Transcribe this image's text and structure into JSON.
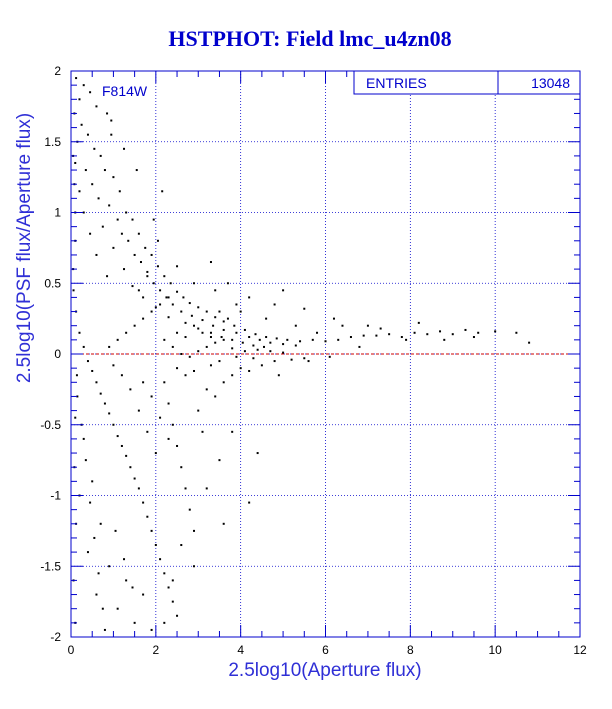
{
  "chart_data": {
    "type": "scatter",
    "title": "HSTPHOT: Field lmc_u4zn08",
    "xlabel": "2.5log10(Aperture flux)",
    "ylabel": "2.5log10(PSF flux/Aperture flux)",
    "xlim": [
      0,
      12
    ],
    "ylim": [
      -2,
      2
    ],
    "x_ticks": [
      0,
      2,
      4,
      6,
      8,
      10,
      12
    ],
    "y_ticks": [
      -2,
      -1.5,
      -1,
      -0.5,
      0,
      0.5,
      1,
      1.5,
      2
    ],
    "x_tick_labels": [
      "0",
      "2",
      "4",
      "6",
      "8",
      "10",
      "12"
    ],
    "y_tick_labels": [
      "-2",
      "-1.5",
      "-1",
      "-0.5",
      "0",
      "0.5",
      "1",
      "1.5",
      "2"
    ],
    "grid": true,
    "annotation": "F814W",
    "stats_box": {
      "label": "ENTRIES",
      "value": "13048",
      "placement": "top-right"
    },
    "reference_line": {
      "y": 0,
      "color": "#cc0000"
    },
    "point_color": "#000000",
    "axis_color": "#0000cc",
    "series": [
      {
        "points": [
          [
            0.12,
            1.95
          ],
          [
            0.3,
            1.9
          ],
          [
            0.45,
            1.85
          ],
          [
            0.2,
            1.8
          ],
          [
            0.6,
            1.75
          ],
          [
            0.08,
            1.7
          ],
          [
            0.25,
            1.62
          ],
          [
            0.85,
            1.7
          ],
          [
            0.4,
            1.55
          ],
          [
            0.95,
            1.65
          ],
          [
            0.15,
            1.5
          ],
          [
            0.55,
            1.45
          ],
          [
            0.7,
            1.4
          ],
          [
            0.1,
            1.35
          ],
          [
            0.35,
            1.3
          ],
          [
            0.8,
            1.3
          ],
          [
            1.0,
            1.25
          ],
          [
            0.5,
            1.2
          ],
          [
            0.2,
            1.15
          ],
          [
            1.15,
            1.15
          ],
          [
            0.65,
            1.1
          ],
          [
            0.9,
            1.05
          ],
          [
            1.3,
            1.0
          ],
          [
            0.3,
            1.0
          ],
          [
            1.1,
            0.95
          ],
          [
            1.45,
            0.95
          ],
          [
            0.75,
            0.9
          ],
          [
            1.2,
            0.85
          ],
          [
            1.6,
            0.85
          ],
          [
            0.45,
            0.85
          ],
          [
            1.35,
            0.8
          ],
          [
            1.75,
            0.75
          ],
          [
            1.0,
            0.75
          ],
          [
            1.5,
            0.7
          ],
          [
            1.9,
            0.7
          ],
          [
            0.6,
            0.7
          ],
          [
            1.65,
            0.65
          ],
          [
            2.05,
            0.62
          ],
          [
            1.25,
            0.6
          ],
          [
            1.8,
            0.58
          ],
          [
            2.2,
            0.55
          ],
          [
            0.85,
            0.55
          ],
          [
            1.95,
            0.5
          ],
          [
            2.35,
            0.5
          ],
          [
            1.45,
            0.48
          ],
          [
            2.1,
            0.45
          ],
          [
            2.5,
            0.44
          ],
          [
            2.65,
            0.4
          ],
          [
            2.25,
            0.4
          ],
          [
            1.7,
            0.4
          ],
          [
            2.8,
            0.36
          ],
          [
            2.4,
            0.35
          ],
          [
            3.0,
            0.33
          ],
          [
            2.0,
            0.33
          ],
          [
            2.6,
            0.3
          ],
          [
            3.2,
            0.3
          ],
          [
            2.85,
            0.27
          ],
          [
            3.4,
            0.26
          ],
          [
            2.3,
            0.26
          ],
          [
            3.1,
            0.24
          ],
          [
            3.6,
            0.23
          ],
          [
            2.7,
            0.22
          ],
          [
            3.35,
            0.2
          ],
          [
            3.85,
            0.2
          ],
          [
            3.0,
            0.18
          ],
          [
            3.6,
            0.17
          ],
          [
            4.1,
            0.17
          ],
          [
            3.3,
            0.15
          ],
          [
            3.9,
            0.15
          ],
          [
            4.35,
            0.14
          ],
          [
            3.55,
            0.12
          ],
          [
            4.2,
            0.12
          ],
          [
            4.6,
            0.12
          ],
          [
            3.8,
            0.1
          ],
          [
            4.45,
            0.1
          ],
          [
            4.85,
            0.11
          ],
          [
            4.05,
            0.08
          ],
          [
            4.7,
            0.08
          ],
          [
            5.1,
            0.1
          ],
          [
            4.3,
            0.06
          ],
          [
            5.0,
            0.07
          ],
          [
            5.4,
            0.09
          ],
          [
            4.55,
            0.05
          ],
          [
            5.3,
            0.06
          ],
          [
            5.7,
            0.1
          ],
          [
            6.0,
            0.09
          ],
          [
            6.3,
            0.1
          ],
          [
            6.6,
            0.12
          ],
          [
            6.9,
            0.13
          ],
          [
            7.2,
            0.13
          ],
          [
            7.5,
            0.14
          ],
          [
            7.8,
            0.12
          ],
          [
            8.1,
            0.15
          ],
          [
            8.4,
            0.14
          ],
          [
            8.7,
            0.16
          ],
          [
            9.0,
            0.14
          ],
          [
            9.3,
            0.17
          ],
          [
            9.6,
            0.15
          ],
          [
            10.0,
            0.16
          ],
          [
            10.5,
            0.15
          ],
          [
            10.8,
            0.08
          ],
          [
            6.2,
            0.25
          ],
          [
            5.5,
            0.32
          ],
          [
            7.0,
            0.2
          ],
          [
            8.2,
            0.22
          ],
          [
            4.8,
            0.35
          ],
          [
            4.2,
            0.4
          ],
          [
            3.7,
            0.5
          ],
          [
            3.3,
            0.65
          ],
          [
            5.0,
            0.45
          ],
          [
            0.1,
            1.0
          ],
          [
            0.05,
            0.6
          ],
          [
            0.12,
            0.3
          ],
          [
            0.2,
            0.15
          ],
          [
            0.3,
            0.05
          ],
          [
            0.4,
            -0.05
          ],
          [
            0.5,
            -0.12
          ],
          [
            0.6,
            -0.2
          ],
          [
            0.7,
            -0.28
          ],
          [
            0.8,
            -0.35
          ],
          [
            0.9,
            -0.42
          ],
          [
            1.0,
            -0.5
          ],
          [
            1.1,
            -0.58
          ],
          [
            1.2,
            -0.65
          ],
          [
            1.3,
            -0.72
          ],
          [
            1.4,
            -0.8
          ],
          [
            1.5,
            -0.88
          ],
          [
            1.6,
            -0.95
          ],
          [
            1.7,
            -1.05
          ],
          [
            1.8,
            -1.15
          ],
          [
            1.9,
            -1.25
          ],
          [
            2.0,
            -1.35
          ],
          [
            2.1,
            -1.45
          ],
          [
            2.2,
            -1.55
          ],
          [
            2.3,
            -1.65
          ],
          [
            2.4,
            -1.75
          ],
          [
            2.5,
            -1.85
          ],
          [
            0.3,
            -0.6
          ],
          [
            0.5,
            -0.9
          ],
          [
            0.7,
            -1.2
          ],
          [
            0.9,
            -1.5
          ],
          [
            1.1,
            -1.8
          ],
          [
            0.2,
            -1.0
          ],
          [
            0.4,
            -1.4
          ],
          [
            0.6,
            -1.7
          ],
          [
            0.8,
            -1.95
          ],
          [
            1.3,
            -1.6
          ],
          [
            1.5,
            -1.9
          ],
          [
            1.7,
            -1.7
          ],
          [
            1.9,
            -1.95
          ],
          [
            0.15,
            -0.3
          ],
          [
            0.25,
            -0.5
          ],
          [
            0.35,
            -0.75
          ],
          [
            0.45,
            -1.05
          ],
          [
            0.55,
            -1.3
          ],
          [
            0.65,
            -1.55
          ],
          [
            0.75,
            -1.8
          ],
          [
            1.05,
            -1.25
          ],
          [
            1.25,
            -1.45
          ],
          [
            1.45,
            -1.65
          ],
          [
            2.2,
            -0.2
          ],
          [
            2.3,
            -0.35
          ],
          [
            2.4,
            -0.5
          ],
          [
            2.5,
            -0.65
          ],
          [
            2.6,
            -0.8
          ],
          [
            2.7,
            -0.95
          ],
          [
            2.8,
            -1.1
          ],
          [
            2.9,
            -1.25
          ],
          [
            3.0,
            -0.4
          ],
          [
            3.1,
            -0.55
          ],
          [
            3.2,
            -0.25
          ],
          [
            3.4,
            -0.3
          ],
          [
            3.6,
            -0.2
          ],
          [
            3.8,
            -0.15
          ],
          [
            4.0,
            -0.1
          ],
          [
            4.2,
            -0.12
          ],
          [
            4.5,
            -0.08
          ],
          [
            4.8,
            -0.05
          ],
          [
            5.2,
            -0.04
          ],
          [
            5.5,
            -0.03
          ],
          [
            2.5,
            -0.1
          ],
          [
            2.7,
            -0.15
          ],
          [
            2.9,
            -0.12
          ],
          [
            3.3,
            -0.08
          ],
          [
            3.5,
            -0.05
          ],
          [
            3.9,
            -0.02
          ],
          [
            4.3,
            -0.03
          ],
          [
            2.2,
            0.1
          ],
          [
            2.4,
            0.05
          ],
          [
            2.6,
            0.0
          ],
          [
            2.8,
            -0.02
          ],
          [
            3.0,
            0.02
          ],
          [
            3.2,
            0.05
          ],
          [
            3.4,
            0.08
          ],
          [
            3.6,
            0.1
          ],
          [
            3.8,
            0.04
          ],
          [
            4.1,
            0.02
          ],
          [
            4.4,
            0.03
          ],
          [
            4.7,
            0.02
          ],
          [
            5.0,
            0.01
          ],
          [
            4.4,
            -0.7
          ],
          [
            3.8,
            -0.55
          ],
          [
            3.5,
            -0.75
          ],
          [
            2.6,
            -1.35
          ],
          [
            2.4,
            -1.6
          ],
          [
            2.2,
            -1.9
          ],
          [
            4.2,
            -1.05
          ],
          [
            3.2,
            -0.95
          ],
          [
            2.9,
            -1.5
          ],
          [
            3.6,
            -1.2
          ],
          [
            1.6,
            -0.4
          ],
          [
            1.8,
            -0.55
          ],
          [
            2.0,
            -0.7
          ],
          [
            1.4,
            -0.25
          ],
          [
            1.2,
            -0.15
          ],
          [
            1.0,
            -0.08
          ],
          [
            1.7,
            -0.2
          ],
          [
            1.9,
            -0.3
          ],
          [
            2.1,
            -0.45
          ],
          [
            2.3,
            -0.6
          ],
          [
            1.5,
            0.2
          ],
          [
            1.7,
            0.25
          ],
          [
            1.9,
            0.3
          ],
          [
            2.1,
            0.35
          ],
          [
            2.3,
            0.4
          ],
          [
            1.3,
            0.15
          ],
          [
            1.1,
            0.1
          ],
          [
            0.9,
            0.05
          ],
          [
            1.6,
            0.45
          ],
          [
            1.8,
            0.55
          ],
          [
            2.5,
            0.15
          ],
          [
            2.7,
            0.12
          ],
          [
            2.9,
            0.2
          ],
          [
            3.1,
            0.15
          ],
          [
            3.3,
            0.12
          ],
          [
            3.5,
            0.3
          ],
          [
            3.7,
            0.25
          ],
          [
            3.9,
            0.35
          ],
          [
            4.6,
            0.25
          ],
          [
            5.3,
            0.2
          ],
          [
            5.8,
            0.15
          ],
          [
            6.4,
            0.2
          ],
          [
            7.3,
            0.18
          ],
          [
            7.9,
            0.1
          ],
          [
            8.8,
            0.1
          ],
          [
            9.5,
            0.12
          ],
          [
            6.8,
            0.05
          ],
          [
            5.6,
            -0.05
          ],
          [
            6.1,
            -0.02
          ],
          [
            4.9,
            -0.15
          ],
          [
            0.05,
            1.4
          ],
          [
            0.08,
            1.2
          ],
          [
            0.1,
            0.8
          ],
          [
            0.06,
            0.45
          ],
          [
            0.14,
            -0.15
          ],
          [
            0.1,
            -0.45
          ],
          [
            0.08,
            -0.8
          ],
          [
            0.12,
            -1.2
          ],
          [
            0.06,
            -1.6
          ],
          [
            0.1,
            -1.9
          ],
          [
            1.95,
            0.95
          ],
          [
            2.05,
            0.8
          ],
          [
            2.5,
            0.62
          ],
          [
            2.9,
            0.5
          ],
          [
            3.4,
            0.45
          ],
          [
            4.0,
            0.3
          ],
          [
            2.15,
            1.15
          ],
          [
            1.55,
            1.3
          ],
          [
            1.25,
            1.45
          ],
          [
            0.95,
            1.55
          ]
        ]
      }
    ]
  }
}
